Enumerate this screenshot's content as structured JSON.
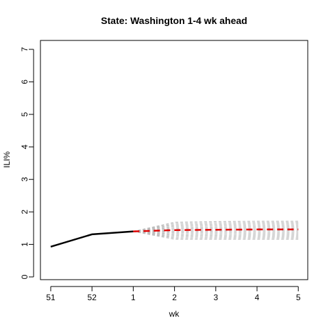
{
  "chart_data": {
    "type": "line",
    "title": "State: Washington 1-4 wk ahead",
    "xlabel": "wk",
    "ylabel": "ILI%",
    "x_tick_labels": [
      "51",
      "52",
      "1",
      "2",
      "3",
      "4",
      "5"
    ],
    "y_ticks": [
      0,
      1,
      2,
      3,
      4,
      5,
      6,
      7
    ],
    "ylim": [
      0,
      7
    ],
    "grid": false,
    "series": [
      {
        "role": "observed",
        "color": "#000000",
        "x": [
          "51",
          "52",
          "1"
        ],
        "values": [
          0.93,
          1.31,
          1.4
        ]
      },
      {
        "role": "forecast",
        "color": "#e00000",
        "x": [
          "1",
          "2",
          "3",
          "4",
          "5"
        ],
        "values": [
          1.4,
          1.44,
          1.45,
          1.46,
          1.46
        ]
      }
    ],
    "ensemble": {
      "color": "#bdbdbd",
      "x": [
        "1",
        "2",
        "3",
        "4",
        "5"
      ],
      "upper": [
        1.4,
        1.68,
        1.7,
        1.71,
        1.71
      ],
      "lower": [
        1.4,
        1.16,
        1.16,
        1.16,
        1.16
      ],
      "members": 14
    }
  }
}
